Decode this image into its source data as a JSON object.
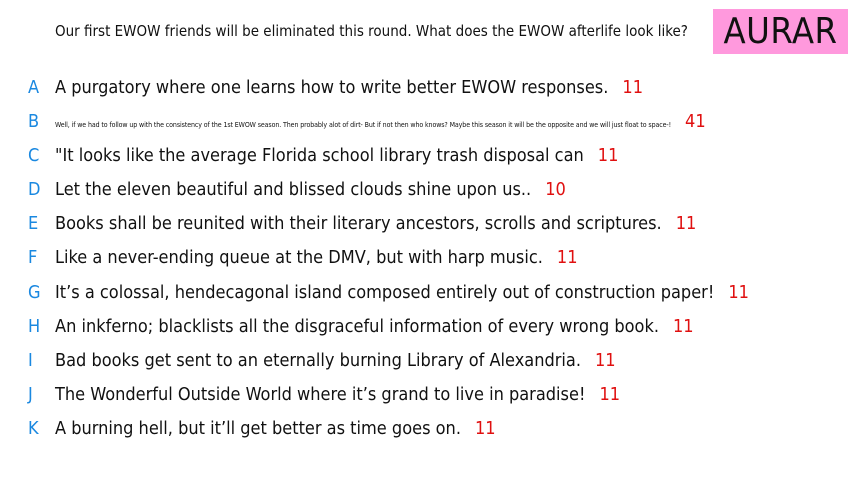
{
  "prompt": "Our first EWOW friends will be eliminated this round. What does the EWOW afterlife look like?",
  "tag": "AURAR",
  "colors": {
    "letter": "#1a88e0",
    "count": "#e01010",
    "tag_bg": "#ff99dd"
  },
  "responses": [
    {
      "letter": "A",
      "text": "A purgatory where one learns how to write better EWOW responses.",
      "count": "11"
    },
    {
      "letter": "B",
      "text": "Well, if we had to follow up with the consistency of the 1st EWOW season. Then probably alot of dirt- But if not then who knows? Maybe this season it will be the opposite and we will just float to space-!",
      "count": "41"
    },
    {
      "letter": "C",
      "text": "\"It looks like the average Florida school library trash disposal can",
      "count": "11"
    },
    {
      "letter": "D",
      "text": "Let the eleven beautiful and blissed clouds shine upon us..",
      "count": "10"
    },
    {
      "letter": "E",
      "text": "Books shall be reunited with their literary ancestors, scrolls and scriptures.",
      "count": "11"
    },
    {
      "letter": "F",
      "text": "Like a never-ending queue at the DMV, but with harp music.",
      "count": "11"
    },
    {
      "letter": "G",
      "text": "It’s a colossal, hendecagonal island composed entirely out of construction paper!",
      "count": "11"
    },
    {
      "letter": "H",
      "text": "An inkferno; blacklists all the disgraceful information of every wrong book.",
      "count": "11"
    },
    {
      "letter": "I",
      "text": "Bad books get sent to an eternally burning Library of Alexandria.",
      "count": "11"
    },
    {
      "letter": "J",
      "text": "The Wonderful Outside World where it’s grand to live in paradise!",
      "count": "11"
    },
    {
      "letter": "K",
      "text": "A burning hell, but it’ll get better as time goes on.",
      "count": "11"
    }
  ]
}
